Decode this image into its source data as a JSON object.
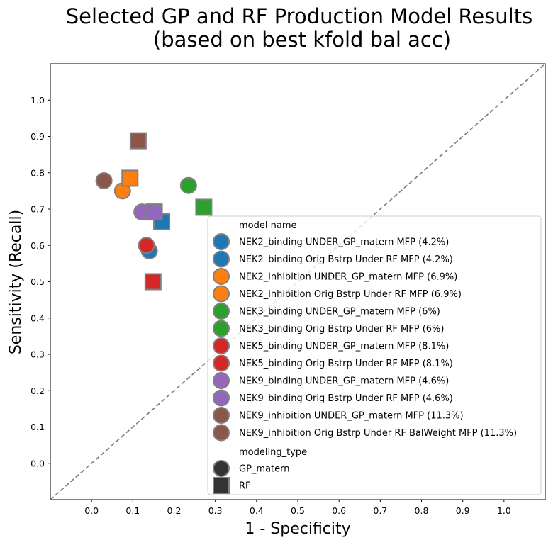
{
  "chart_data": {
    "type": "scatter",
    "title_line1": "Selected GP and RF Production Model Results",
    "title_line2": "(based on best kfold bal acc)",
    "xlabel": "1 - Specificity",
    "ylabel": "Sensitivity (Recall)",
    "xlim": [
      -0.1,
      1.1
    ],
    "ylim": [
      -0.1,
      1.1
    ],
    "xticks": [
      "0.0",
      "0.1",
      "0.2",
      "0.3",
      "0.4",
      "0.5",
      "0.6",
      "0.7",
      "0.8",
      "0.9",
      "1.0"
    ],
    "yticks": [
      "0.0",
      "0.1",
      "0.2",
      "0.3",
      "0.4",
      "0.5",
      "0.6",
      "0.7",
      "0.8",
      "0.9",
      "1.0"
    ],
    "diagonal": true,
    "legend_location": "lower-right",
    "legend_title_series": "model name",
    "legend_title_type": "modeling_type",
    "series": [
      {
        "name": "NEK2_binding UNDER_GP_matern MFP (4.2%)",
        "color": "#1f77b4",
        "marker": "GP_matern",
        "x": 0.14,
        "y": 0.585
      },
      {
        "name": "NEK2_binding Orig Bstrp Under RF MFP (4.2%)",
        "color": "#1f77b4",
        "marker": "RF",
        "x": 0.17,
        "y": 0.665
      },
      {
        "name": "NEK2_inhibition UNDER_GP_matern MFP (6.9%)",
        "color": "#ff7f0e",
        "marker": "GP_matern",
        "x": 0.075,
        "y": 0.75
      },
      {
        "name": "NEK2_inhibition Orig Bstrp Under RF MFP (6.9%)",
        "color": "#ff7f0e",
        "marker": "RF",
        "x": 0.093,
        "y": 0.785
      },
      {
        "name": "NEK3_binding UNDER_GP_matern MFP (6%)",
        "color": "#2ca02c",
        "marker": "GP_matern",
        "x": 0.235,
        "y": 0.765
      },
      {
        "name": "NEK3_binding Orig Bstrp Under RF MFP (6%)",
        "color": "#2ca02c",
        "marker": "RF",
        "x": 0.272,
        "y": 0.705
      },
      {
        "name": "NEK5_binding UNDER_GP_matern MFP (8.1%)",
        "color": "#d62728",
        "marker": "GP_matern",
        "x": 0.133,
        "y": 0.6
      },
      {
        "name": "NEK5_binding Orig Bstrp Under RF MFP (8.1%)",
        "color": "#d62728",
        "marker": "RF",
        "x": 0.149,
        "y": 0.5
      },
      {
        "name": "NEK9_binding UNDER_GP_matern MFP (4.6%)",
        "color": "#9467bd",
        "marker": "GP_matern",
        "x": 0.122,
        "y": 0.692
      },
      {
        "name": "NEK9_binding Orig Bstrp Under RF MFP (4.6%)",
        "color": "#9467bd",
        "marker": "RF",
        "x": 0.152,
        "y": 0.692
      },
      {
        "name": "NEK9_inhibition UNDER_GP_matern MFP (11.3%)",
        "color": "#8c564b",
        "marker": "GP_matern",
        "x": 0.03,
        "y": 0.778
      },
      {
        "name": "NEK9_inhibition Orig Bstrp Under RF BalWeight MFP (11.3%)",
        "color": "#8c564b",
        "marker": "RF",
        "x": 0.113,
        "y": 0.888
      }
    ],
    "marker_types": [
      {
        "name": "GP_matern",
        "shape": "circle",
        "color": "#333333"
      },
      {
        "name": "RF",
        "shape": "square",
        "color": "#333333"
      }
    ],
    "colors": {
      "marker_edge": "#808080",
      "diagonal": "#808080",
      "legend_border": "#cccccc"
    }
  }
}
